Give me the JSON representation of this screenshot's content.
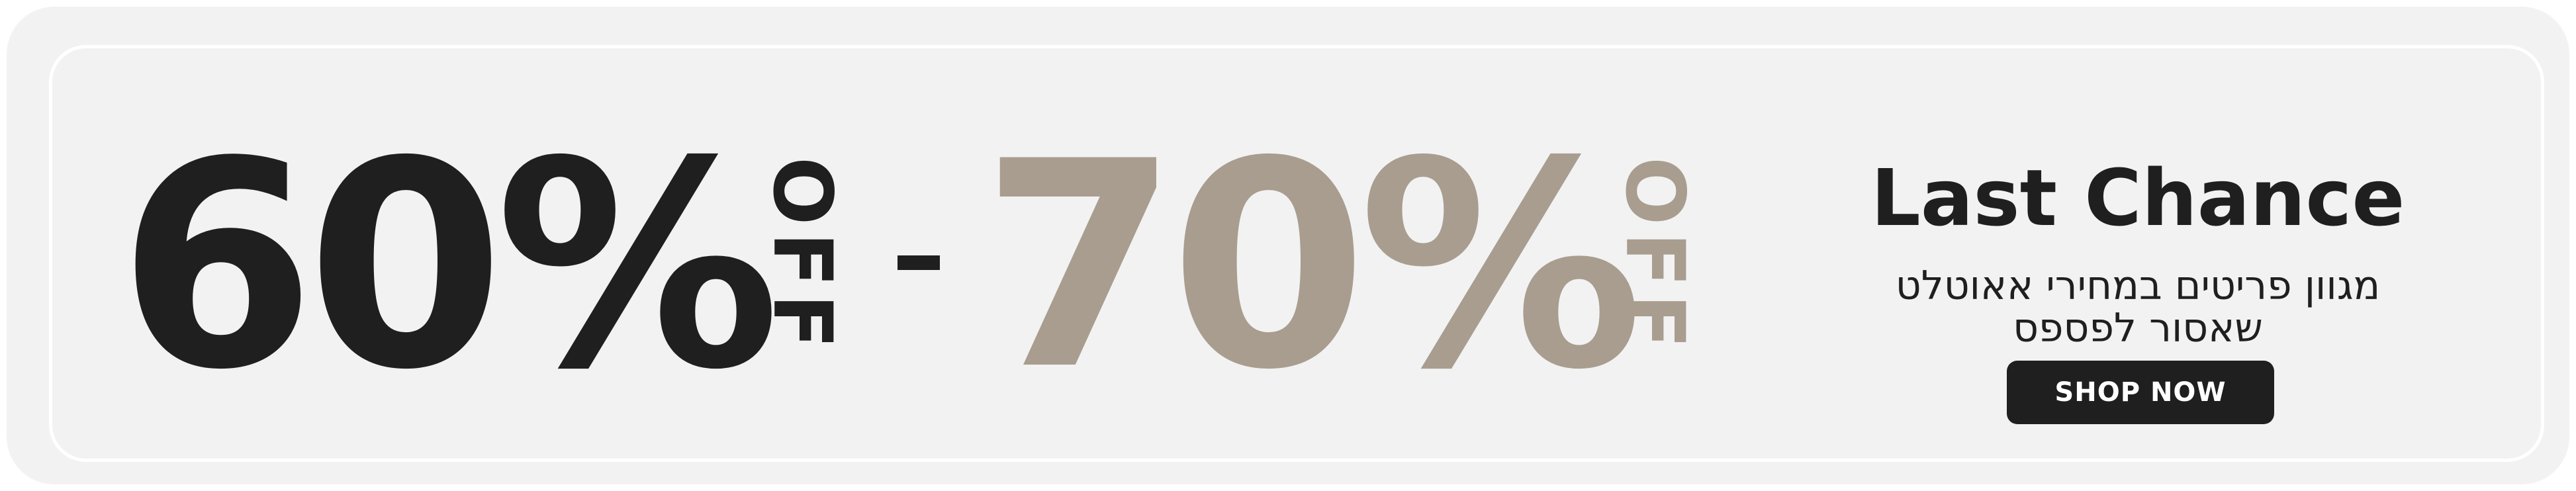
{
  "banner": {
    "discount_low": "60%",
    "off_label_low": "OFF",
    "separator": "-",
    "discount_high": "70%",
    "off_label_high": "OFF",
    "headline": "Last Chance",
    "subtext_line1": "מגוון פריטים במחירי אאוטלט",
    "subtext_line2": "שאסור לפספס",
    "cta_label": "SHOP NOW"
  },
  "colors": {
    "background": "#f2f2f2",
    "primary_text": "#1f1f1f",
    "accent": "#a89d8f",
    "button_text": "#ffffff"
  }
}
